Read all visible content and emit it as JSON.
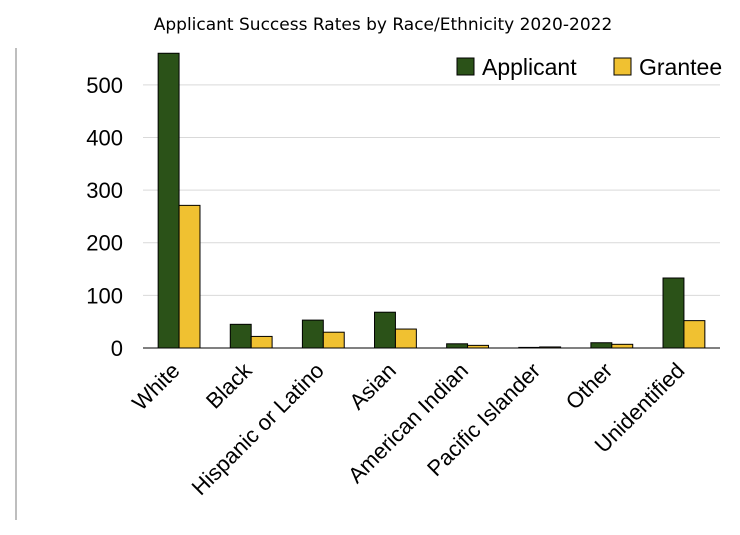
{
  "chart_data": {
    "type": "bar",
    "title": "Applicant Success Rates by Race/Ethnicity 2020-2022",
    "categories": [
      "White",
      "Black",
      "Hispanic or Latino",
      "Asian",
      "American Indian",
      "Pacific Islander",
      "Other",
      "Unidentified"
    ],
    "series": [
      {
        "name": "Applicant",
        "color": "#2b5218",
        "values": [
          560,
          45,
          53,
          68,
          8,
          1,
          10,
          133
        ]
      },
      {
        "name": "Grantee",
        "color": "#f0c131",
        "values": [
          271,
          22,
          30,
          36,
          5,
          2,
          7,
          52
        ]
      }
    ],
    "ylim": [
      0,
      570
    ],
    "yticks": [
      0,
      100,
      200,
      300,
      400,
      500
    ],
    "grid": true,
    "legend_position": "top-right"
  }
}
